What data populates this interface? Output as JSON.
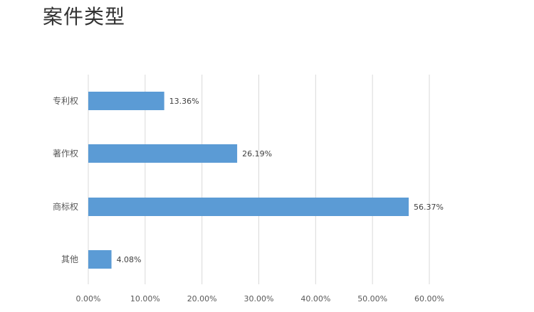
{
  "chart_data": {
    "type": "bar",
    "orientation": "horizontal",
    "title": "案件类型",
    "categories": [
      "专利权",
      "著作权",
      "商标权",
      "其他"
    ],
    "values": [
      13.36,
      26.19,
      56.37,
      4.08
    ],
    "value_labels": [
      "13.36%",
      "26.19%",
      "56.37%",
      "4.08%"
    ],
    "xlim": [
      0,
      60
    ],
    "x_ticks": [
      0,
      10,
      20,
      30,
      40,
      50,
      60
    ],
    "x_tick_labels": [
      "0.00%",
      "10.00%",
      "20.00%",
      "30.00%",
      "40.00%",
      "50.00%",
      "60.00%"
    ],
    "grid": "vertical",
    "legend": "none",
    "bar_color": "#5b9bd5",
    "grid_color": "#d9d9d9"
  }
}
